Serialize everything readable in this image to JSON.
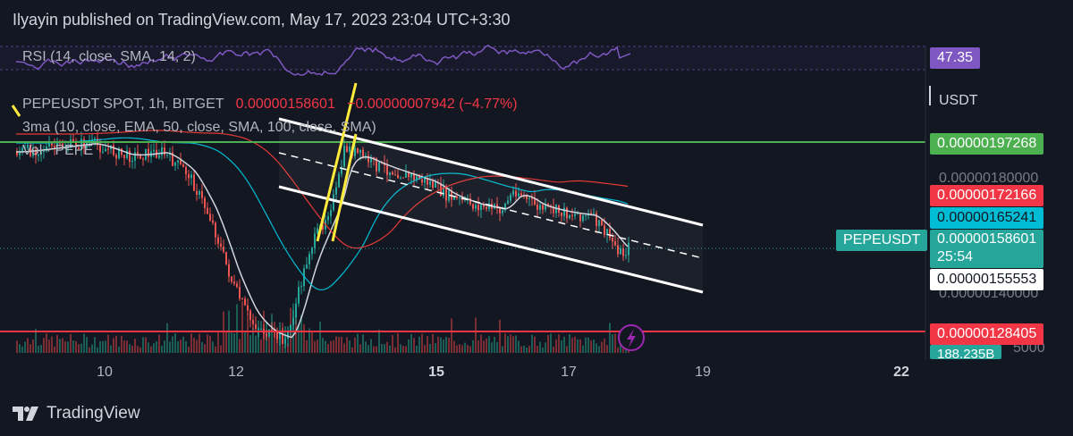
{
  "header": {
    "publisher_line": "Ilyayin published on TradingView.com, May 17, 2023 23:04 UTC+3:30"
  },
  "brand": {
    "name": "TradingView"
  },
  "rsi": {
    "label": "RSI (14, close, SMA, 14, 2)",
    "value": "47.35"
  },
  "legend": {
    "symbol": "PEPEUSDT SPOT, 1h, BITGET",
    "last": "0.00000158601",
    "change": "−0.00000007942 (−4.77%)",
    "ma": "3ma (10, close, EMA, 50, close, SMA, 100, close, SMA)",
    "vol": "Vol · PEPE"
  },
  "price_axis": {
    "currency": "USDT",
    "faint_ticks": [
      "0.00000180000",
      "0.00000140000",
      "5000"
    ],
    "tags": {
      "green_line": "0.00000197268",
      "ma_red": "0.00000172166",
      "ma_cyan": "0.00000165241",
      "symbol_name": "PEPEUSDT",
      "last_price": "0.00000158601",
      "countdown": "25:54",
      "ma_white": "0.00000155553",
      "red_line": "0.00000128405",
      "volume": "188.235B"
    }
  },
  "colors": {
    "background": "#131722",
    "green_line": "#4caf50",
    "red_line": "#f23645",
    "channel": "#ffffff",
    "yellow": "#ffeb3b",
    "rsi": "#7e57c2",
    "ma_cyan": "#00bcd4",
    "ma_red": "#e53935",
    "up": "#26a69a",
    "down": "#ef5350"
  },
  "chart_data": {
    "type": "candlestick",
    "symbol": "PEPEUSDT",
    "interval": "1h",
    "x_ticks": [
      "10",
      "12",
      "15",
      "17",
      "19",
      "22"
    ],
    "ylim": [
      1.2e-06,
      2.2e-06
    ],
    "horizontal_lines": [
      {
        "value": 1.97268e-06,
        "color": "#4caf50"
      },
      {
        "value": 1.28405e-06,
        "color": "#f23645"
      }
    ],
    "series": [
      {
        "name": "EMA 10",
        "last": 1.55553e-06
      },
      {
        "name": "SMA 50",
        "last": 1.65241e-06
      },
      {
        "name": "SMA 100",
        "last": 1.72166e-06
      }
    ],
    "last_price": 1.58601e-06,
    "change": -7.942e-08,
    "change_pct": -4.77,
    "rsi_last": 47.35
  }
}
